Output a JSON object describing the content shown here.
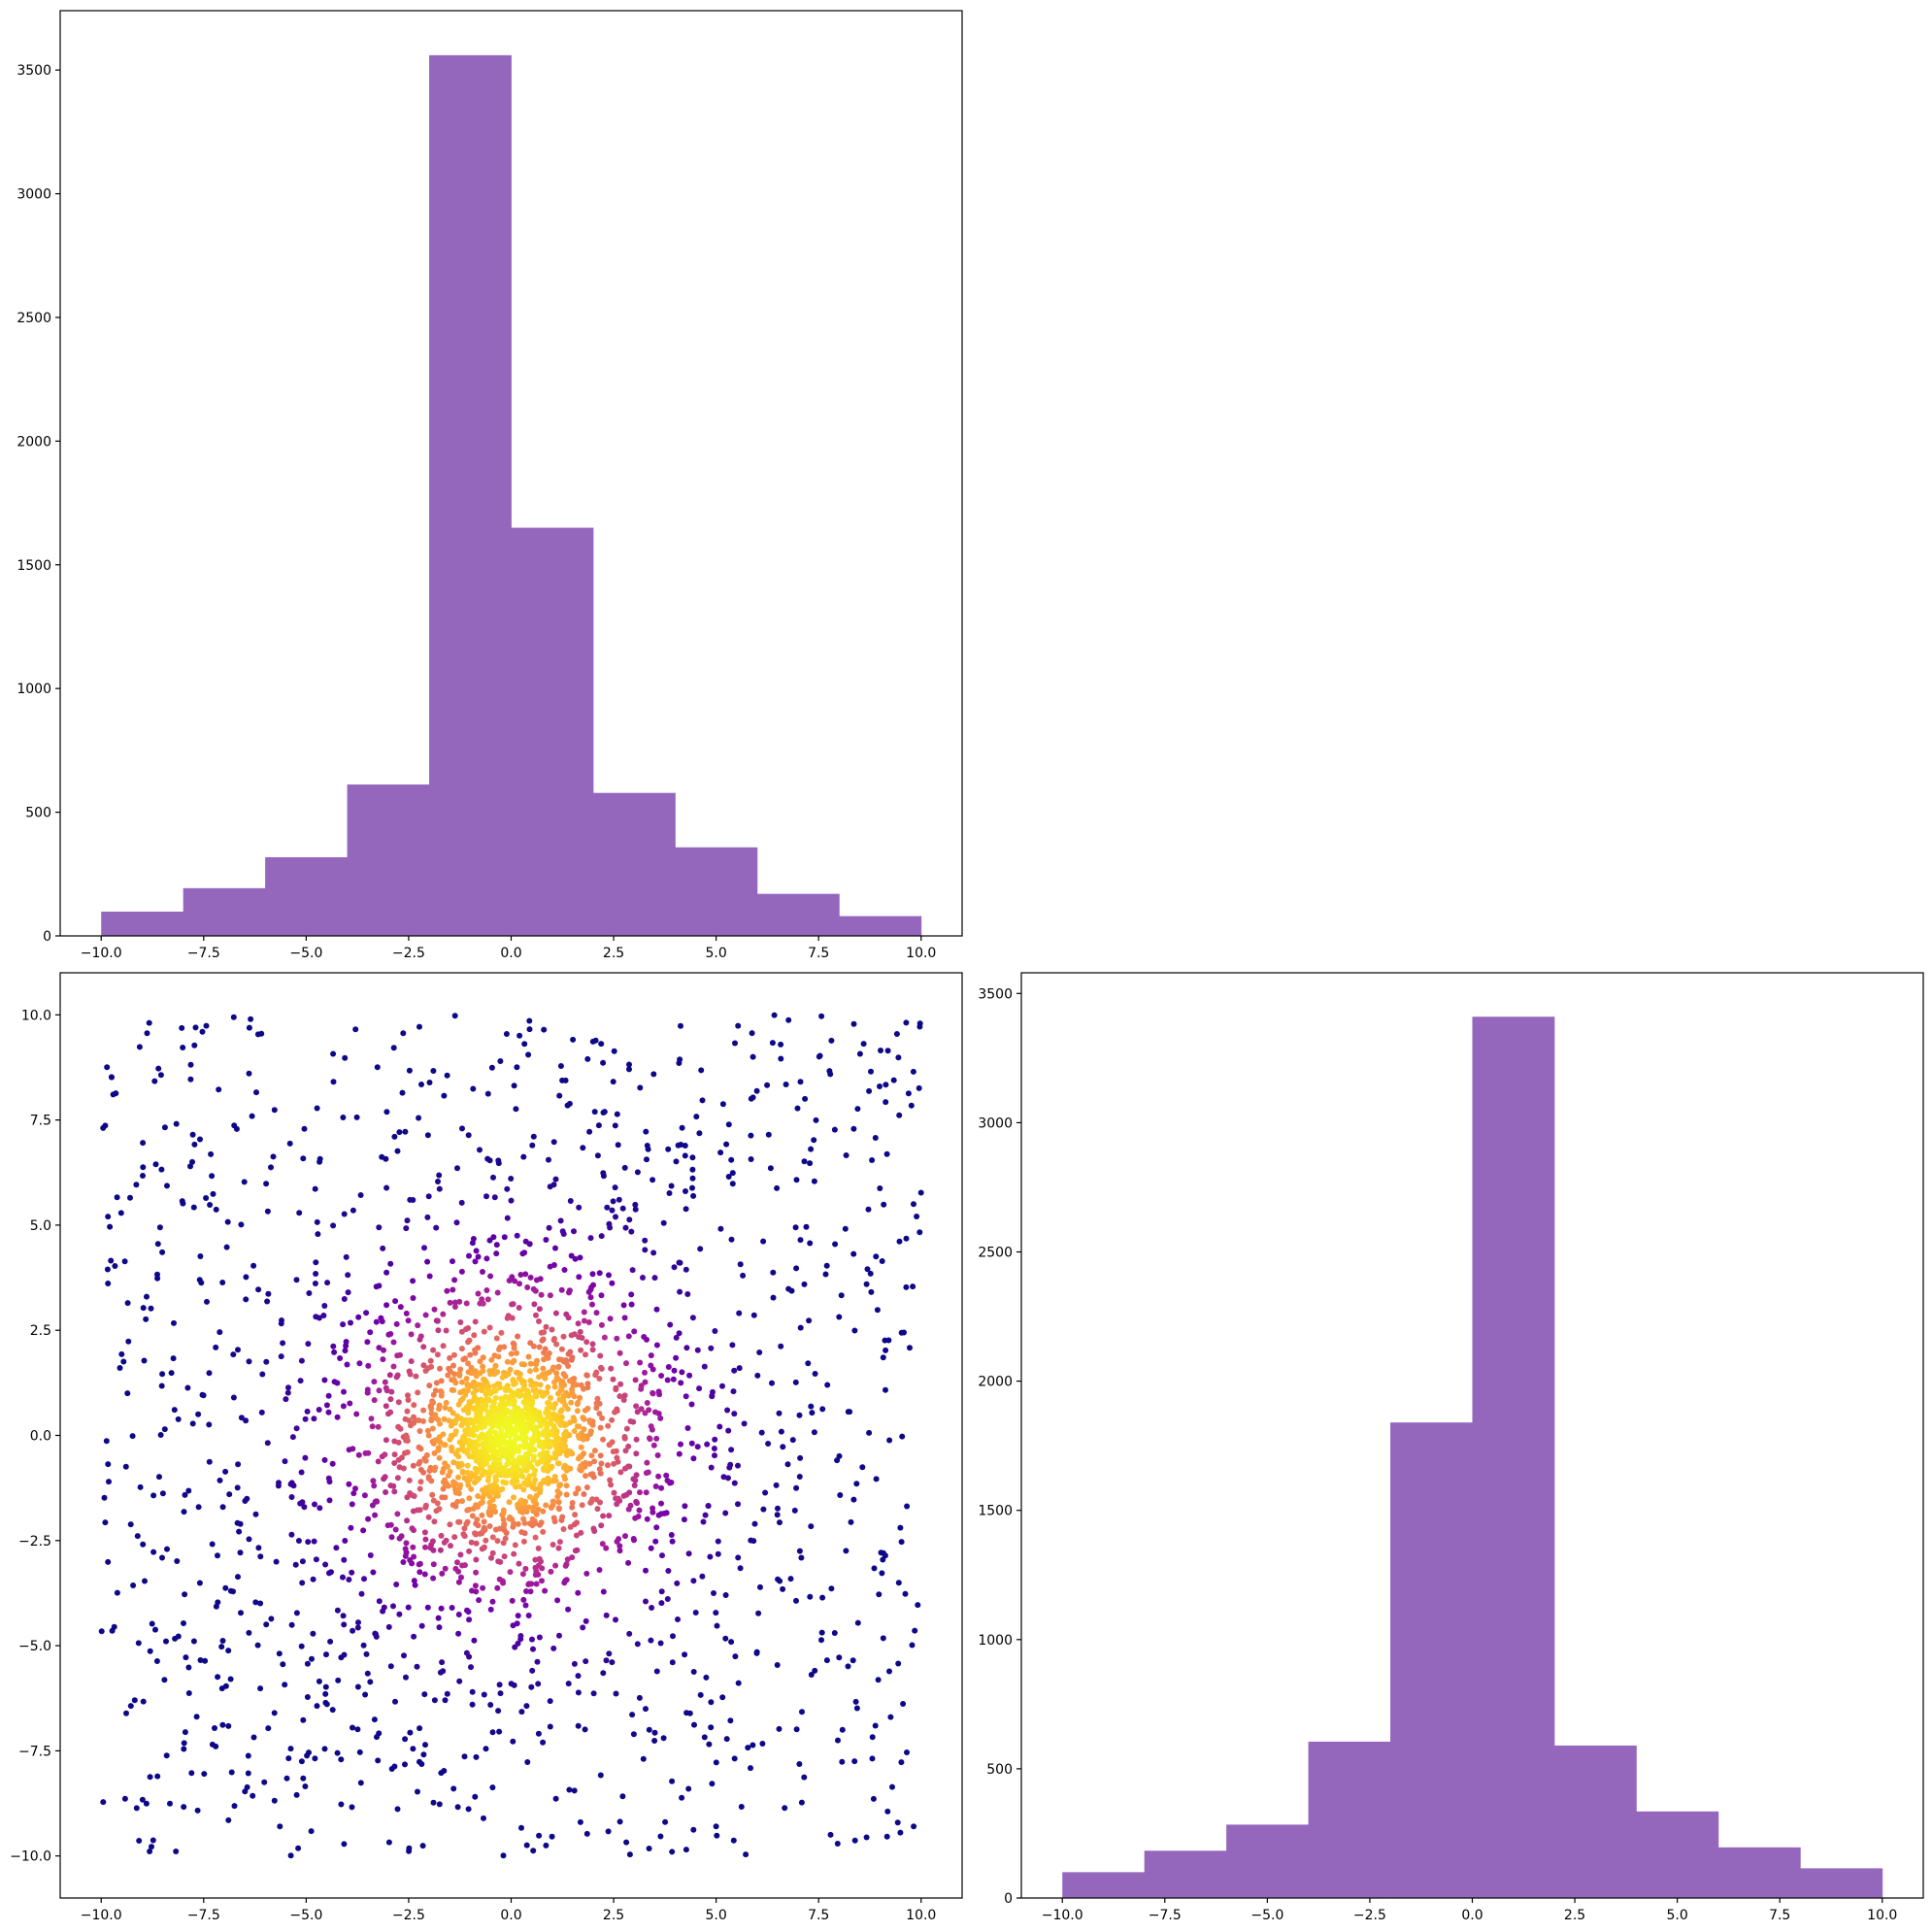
{
  "colors": {
    "bar_fill": "#9467bd",
    "axes": "#000000",
    "background": "#ffffff",
    "scatter_colormap": [
      "#0d0887",
      "#46039f",
      "#7201a8",
      "#9c179e",
      "#bd3786",
      "#d8576b",
      "#ed7953",
      "#fb9f3a",
      "#fdca26",
      "#f0f921"
    ]
  },
  "chart_data": [
    {
      "type": "bar",
      "panel": "top-left",
      "bin_edges": [
        -10.0,
        -8.0,
        -6.0,
        -4.0,
        -2.0,
        0.0,
        2.0,
        4.0,
        6.0,
        8.0,
        10.0
      ],
      "values": [
        98,
        193,
        318,
        612,
        3560,
        1650,
        578,
        358,
        170,
        80
      ],
      "xlim": [
        -11.0,
        11.0
      ],
      "ylim": [
        0,
        3740
      ],
      "xticks": [
        "−10.0",
        "−7.5",
        "−5.0",
        "−2.5",
        "0.0",
        "2.5",
        "5.0",
        "7.5",
        "10.0"
      ],
      "yticks": [
        "0",
        "500",
        "1000",
        "1500",
        "2000",
        "2500",
        "3000",
        "3500"
      ],
      "title": "",
      "xlabel": "",
      "ylabel": ""
    },
    {
      "type": "scatter",
      "panel": "bottom-left",
      "n_points": 3000,
      "color_encoding": "point density (plasma colormap)",
      "distribution": "concentrated around (0, 0), spread uniformly across [-10, 10] × [-10, 10]",
      "xlim": [
        -11.0,
        11.0
      ],
      "ylim": [
        -11.0,
        11.0
      ],
      "xticks": [
        "−10.0",
        "−7.5",
        "−5.0",
        "−2.5",
        "0.0",
        "2.5",
        "5.0",
        "7.5",
        "10.0"
      ],
      "yticks": [
        "−10.0",
        "−7.5",
        "−5.0",
        "−2.5",
        "0.0",
        "2.5",
        "5.0",
        "7.5",
        "10.0"
      ],
      "title": "",
      "xlabel": "",
      "ylabel": ""
    },
    {
      "type": "bar",
      "panel": "bottom-right",
      "bin_edges": [
        -10.0,
        -8.0,
        -6.0,
        -4.0,
        -2.0,
        0.0,
        2.0,
        4.0,
        6.0,
        8.0,
        10.0
      ],
      "values": [
        100,
        183,
        284,
        605,
        1840,
        3410,
        590,
        335,
        196,
        115
      ],
      "xlim": [
        -11.0,
        11.0
      ],
      "ylim": [
        0,
        3580
      ],
      "xticks": [
        "−10.0",
        "−7.5",
        "−5.0",
        "−2.5",
        "0.0",
        "2.5",
        "5.0",
        "7.5",
        "10.0"
      ],
      "yticks": [
        "0",
        "500",
        "1000",
        "1500",
        "2000",
        "2500",
        "3000",
        "3500"
      ],
      "title": "",
      "xlabel": "",
      "ylabel": ""
    }
  ]
}
